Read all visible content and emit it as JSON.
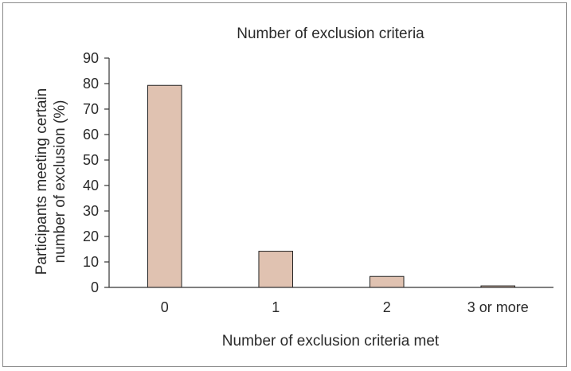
{
  "chart_data": {
    "type": "bar",
    "title": "Number of exclusion criteria",
    "xlabel": "Number of exclusion criteria met",
    "ylabel_lines": [
      "Participants meeting certain",
      "number of exclusion (%)"
    ],
    "categories": [
      "0",
      "1",
      "2",
      "3 or more"
    ],
    "values": [
      79.3,
      14.2,
      4.3,
      0.6
    ],
    "ylim": [
      0,
      90
    ],
    "yticks": [
      0,
      10,
      20,
      30,
      40,
      50,
      60,
      70,
      80,
      90
    ],
    "grid": false,
    "legend": "none",
    "colors": {
      "bar_fill": "#e0c2b1",
      "bar_stroke": "#222222",
      "axis": "#333333"
    }
  }
}
